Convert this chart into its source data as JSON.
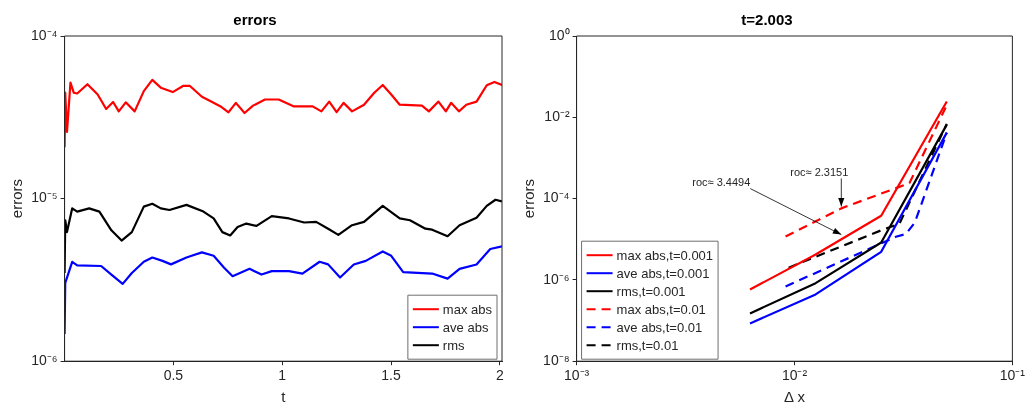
{
  "chart_data": [
    {
      "type": "line",
      "title": "errors",
      "xlabel": "t",
      "ylabel": "errors",
      "log": "y",
      "xlim": [
        0,
        2.01
      ],
      "xticks": [
        0.5,
        1,
        1.5,
        2
      ],
      "ylim": [
        1e-06,
        0.0001
      ],
      "yticks": [
        {
          "value": 1e-06,
          "label": "10⁻⁶"
        },
        {
          "value": 1e-05,
          "label": "10⁻⁵"
        },
        {
          "value": 0.0001,
          "label": "10⁻⁴"
        }
      ],
      "legend": "bottom right",
      "marker": "none",
      "series": [
        {
          "name": "max abs",
          "color": "#ff0000",
          "x": [
            0,
            0.003,
            0.011,
            0.027,
            0.042,
            0.058,
            0.105,
            0.152,
            0.191,
            0.223,
            0.249,
            0.281,
            0.322,
            0.364,
            0.403,
            0.442,
            0.497,
            0.544,
            0.576,
            0.631,
            0.678,
            0.717,
            0.753,
            0.787,
            0.827,
            0.866,
            0.921,
            0.984,
            1.054,
            1.14,
            1.18,
            1.216,
            1.25,
            1.282,
            1.321,
            1.376,
            1.423,
            1.462,
            1.501,
            1.54,
            1.642,
            1.674,
            1.718,
            1.752,
            1.776,
            1.812,
            1.846,
            1.893,
            1.94,
            1.975,
            2.01
          ],
          "values": [
            2.07e-05,
            4.48e-05,
            2.57e-05,
            5.17e-05,
            4.48e-05,
            4.43e-05,
            5.05e-05,
            4.37e-05,
            3.56e-05,
            3.93e-05,
            3.44e-05,
            3.91e-05,
            3.44e-05,
            4.58e-05,
            5.37e-05,
            4.81e-05,
            4.52e-05,
            4.93e-05,
            4.93e-05,
            4.23e-05,
            3.93e-05,
            3.69e-05,
            3.39e-05,
            3.88e-05,
            3.36e-05,
            3.73e-05,
            4.07e-05,
            4.07e-05,
            3.69e-05,
            3.69e-05,
            3.44e-05,
            3.95e-05,
            3.4e-05,
            3.88e-05,
            3.44e-05,
            3.78e-05,
            4.48e-05,
            5e-05,
            4.37e-05,
            3.78e-05,
            3.73e-05,
            3.44e-05,
            3.95e-05,
            3.44e-05,
            3.88e-05,
            3.44e-05,
            3.78e-05,
            3.95e-05,
            4.98e-05,
            5.22e-05,
            5e-05
          ]
        },
        {
          "name": "ave abs",
          "color": "#0000ff",
          "x": [
            0,
            0.003,
            0.035,
            0.058,
            0.168,
            0.215,
            0.267,
            0.309,
            0.364,
            0.403,
            0.45,
            0.489,
            0.56,
            0.631,
            0.685,
            0.733,
            0.772,
            0.85,
            0.905,
            0.952,
            1.031,
            1.093,
            1.172,
            1.211,
            1.266,
            1.329,
            1.384,
            1.462,
            1.501,
            1.556,
            1.689,
            1.76,
            1.815,
            1.893,
            1.956,
            2.01
          ],
          "values": [
            1.47e-06,
            3.03e-06,
            4.08e-06,
            3.88e-06,
            3.85e-06,
            3.41e-06,
            2.99e-06,
            3.49e-06,
            4.09e-06,
            4.34e-06,
            4.14e-06,
            3.94e-06,
            4.34e-06,
            4.67e-06,
            4.45e-06,
            3.76e-06,
            3.33e-06,
            3.7e-06,
            3.41e-06,
            3.58e-06,
            3.58e-06,
            3.46e-06,
            4.09e-06,
            3.94e-06,
            3.27e-06,
            3.93e-06,
            4.14e-06,
            4.73e-06,
            4.45e-06,
            3.53e-06,
            3.46e-06,
            3.22e-06,
            3.7e-06,
            3.93e-06,
            4.9e-06,
            5.08e-06
          ]
        },
        {
          "name": "rms",
          "color": "#000000",
          "x": [
            0,
            0.003,
            0.011,
            0.035,
            0.058,
            0.113,
            0.16,
            0.215,
            0.262,
            0.309,
            0.364,
            0.403,
            0.442,
            0.482,
            0.56,
            0.638,
            0.685,
            0.725,
            0.761,
            0.795,
            0.835,
            0.882,
            0.952,
            1.031,
            1.101,
            1.156,
            1.211,
            1.258,
            1.321,
            1.376,
            1.462,
            1.54,
            1.587,
            1.658,
            1.689,
            1.76,
            1.815,
            1.893,
            1.94,
            1.98,
            2.01
          ],
          "values": [
            3.49e-06,
            7.36e-06,
            6.22e-06,
            8.71e-06,
            8.32e-06,
            8.71e-06,
            8.32e-06,
            6.38e-06,
            5.52e-06,
            6.22e-06,
            8.93e-06,
            9.29e-06,
            8.71e-06,
            8.51e-06,
            9.15e-06,
            8.32e-06,
            7.55e-06,
            6.22e-06,
            5.93e-06,
            6.68e-06,
            7.02e-06,
            6.79e-06,
            7.8e-06,
            7.55e-06,
            7.13e-06,
            7.19e-06,
            6.53e-06,
            5.98e-06,
            6.86e-06,
            7.19e-06,
            9.02e-06,
            7.55e-06,
            7.36e-06,
            6.53e-06,
            6.44e-06,
            5.87e-06,
            6.86e-06,
            7.62e-06,
            9.02e-06,
            9.84e-06,
            9.6e-06
          ]
        }
      ]
    },
    {
      "type": "line",
      "title": "t=2.003",
      "xlabel": "Δ x",
      "ylabel": "errors",
      "log": "xy",
      "xlim": [
        0.001,
        0.1
      ],
      "xticks": [
        {
          "value": 0.001,
          "label": "10⁻³"
        },
        {
          "value": 0.01,
          "label": "10⁻²"
        },
        {
          "value": 0.1,
          "label": "10⁻¹"
        }
      ],
      "ylim": [
        1e-08,
        1
      ],
      "yticks": [
        {
          "value": 1e-08,
          "label": "10⁻⁸"
        },
        {
          "value": 1e-06,
          "label": "10⁻⁶"
        },
        {
          "value": 0.0001,
          "label": "10⁻⁴"
        },
        {
          "value": 0.01,
          "label": "10⁻²"
        },
        {
          "value": 1,
          "label": "10⁰"
        }
      ],
      "legend": "bottom left",
      "marker": "none",
      "annotations": [
        {
          "text": "roc≈ 3.4494",
          "x": 0.0164,
          "y": 1.3e-05
        },
        {
          "text": "roc≈ 2.3151",
          "x": 0.0164,
          "y": 6.4e-05
        }
      ],
      "series": [
        {
          "name": "max abs,t=0.001",
          "color": "#ff0000",
          "line_style": "solid",
          "x": [
            0.00625,
            0.0125,
            0.025,
            0.05
          ],
          "values": [
            5.8e-07,
            4.2e-06,
            3.8e-05,
            0.0245
          ]
        },
        {
          "name": "ave abs,t=0.001",
          "color": "#0000ff",
          "line_style": "solid",
          "x": [
            0.00625,
            0.0125,
            0.025,
            0.05
          ],
          "values": [
            8.5e-08,
            4.4e-07,
            4.9e-06,
            0.0042
          ]
        },
        {
          "name": "rms,t=0.001",
          "color": "#000000",
          "line_style": "solid",
          "x": [
            0.00625,
            0.0125,
            0.025,
            0.05
          ],
          "values": [
            1.5e-07,
            8.3e-07,
            8.3e-06,
            0.0066
          ]
        },
        {
          "name": "max abs,t=0.01",
          "color": "#ff0000",
          "line_style": "dashed",
          "x": [
            0.0091,
            0.0164,
            0.0337,
            0.05
          ],
          "values": [
            1.17e-05,
            5.75e-05,
            0.00024,
            0.02
          ]
        },
        {
          "name": "ave abs,t=0.01",
          "color": "#0000ff",
          "line_style": "dashed",
          "x": [
            0.0091,
            0.0292,
            0.0325,
            0.0357,
            0.05
          ],
          "values": [
            6.9e-07,
            1.15e-05,
            1.35e-05,
            2.6e-05,
            0.0042
          ]
        },
        {
          "name": "rms,t=0.01",
          "color": "#000000",
          "line_style": "dashed",
          "x": [
            0.0094,
            0.0253,
            0.0303,
            0.05
          ],
          "values": [
            2e-06,
            1.7e-05,
            2.4e-05,
            0.0069
          ]
        }
      ]
    }
  ]
}
